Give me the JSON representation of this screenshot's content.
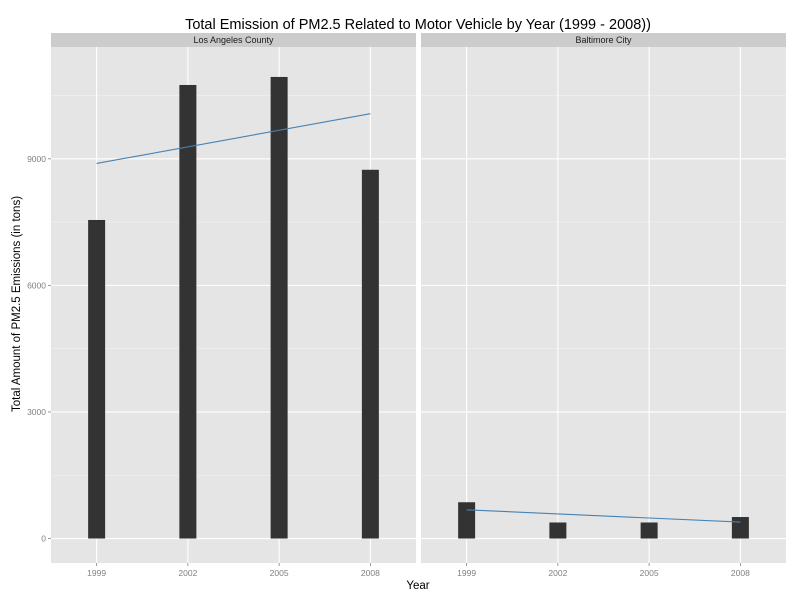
{
  "colors": {
    "panel_bg": "#e5e5e5",
    "strip_bg": "#cccccc",
    "grid_major": "#ffffff",
    "grid_minor": "#f2f2f2",
    "bar_fill": "#333333",
    "trend_line": "#4682b4",
    "tick_text": "#7f7f7f"
  },
  "chart_data": {
    "type": "bar",
    "title": "Total Emission of PM2.5 Related to Motor Vehicle by Year (1999 - 2008))",
    "xlabel": "Year",
    "ylabel": "Total Amount of PM2.5 Emissions (in tons)",
    "categories": [
      "1999",
      "2002",
      "2005",
      "2008"
    ],
    "ylim": [
      -580,
      11650
    ],
    "yticks": [
      "0",
      "3000",
      "6000",
      "9000"
    ],
    "grid": true,
    "legend": "none",
    "panels": [
      {
        "name": "Los Angeles County",
        "values": [
          7550,
          10750,
          10940,
          8740
        ],
        "trend": {
          "start": [
            1999,
            8890
          ],
          "end": [
            2008,
            10070
          ]
        }
      },
      {
        "name": "Baltimore City",
        "values": [
          860,
          380,
          380,
          510
        ],
        "trend": {
          "start": [
            1999,
            680
          ],
          "end": [
            2008,
            390
          ]
        }
      }
    ]
  }
}
